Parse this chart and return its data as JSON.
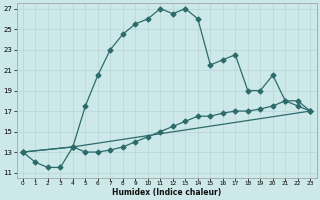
{
  "xlabel": "Humidex (Indice chaleur)",
  "background_color": "#cde8e8",
  "grid_color": "#b8d4d4",
  "line_color": "#2d6b6b",
  "xlim": [
    -0.5,
    23.5
  ],
  "ylim": [
    10.5,
    27.5
  ],
  "xticks": [
    0,
    1,
    2,
    3,
    4,
    5,
    6,
    7,
    8,
    9,
    10,
    11,
    12,
    13,
    14,
    15,
    16,
    17,
    18,
    19,
    20,
    21,
    22,
    23
  ],
  "yticks": [
    11,
    13,
    15,
    17,
    19,
    21,
    23,
    25,
    27
  ],
  "line1_x": [
    0,
    1,
    2,
    3,
    4,
    5,
    6,
    7,
    8,
    9,
    10,
    11,
    12,
    13,
    14,
    15,
    16,
    17,
    18,
    19,
    20,
    21,
    22,
    23
  ],
  "line1_y": [
    13,
    12,
    11.5,
    11.5,
    13.5,
    17.5,
    20.5,
    23,
    24.5,
    25.5,
    26,
    27,
    26.5,
    27,
    26,
    21.5,
    22,
    22.5,
    19,
    19,
    20.5,
    18,
    17.5,
    17
  ],
  "line2_x": [
    0,
    4,
    5,
    6,
    7,
    8,
    9,
    10,
    11,
    12,
    13,
    14,
    15,
    16,
    17,
    18,
    19,
    20,
    21,
    22,
    23
  ],
  "line2_y": [
    13,
    13.5,
    13,
    13,
    13.2,
    13.5,
    14,
    14.5,
    15,
    15.5,
    16,
    16.5,
    16.5,
    16.8,
    17,
    17,
    17.2,
    17.5,
    18,
    18,
    17
  ],
  "line3_x": [
    0,
    4,
    23
  ],
  "line3_y": [
    13,
    13.5,
    17
  ],
  "marker": "D",
  "markersize": 2.5,
  "linewidth": 0.9
}
